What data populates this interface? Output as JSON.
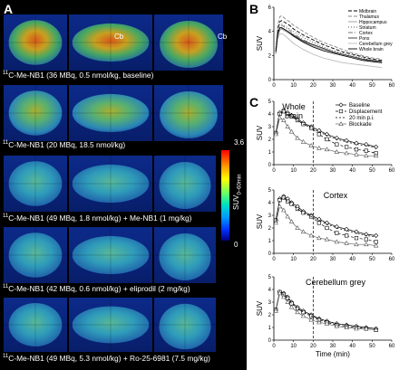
{
  "panel_a": {
    "label": "A",
    "cerebellum_label": "Cb",
    "colorbar": {
      "max": "3.6",
      "min": "0",
      "label": "SUV",
      "label_sub": "0–60min"
    },
    "rows": [
      {
        "sup": "11",
        "text": "C-Me-NB1 (36 MBq, 0.5 nmol/kg, baseline)"
      },
      {
        "sup": "11",
        "text": "C-Me-NB1 (20 MBq, 18.5 nmol/kg)"
      },
      {
        "sup": "11",
        "text": "C-Me-NB1 (49 MBq, 1.8 nmol/kg) + Me-NB1 (1 mg/kg)"
      },
      {
        "sup": "11",
        "text": "C-Me-NB1 (42 MBq, 0.6 nmol/kg) + eliprodil (2 mg/kg)"
      },
      {
        "sup": "11",
        "text": "C-Me-NB1 (49 MBq, 5.3 nmol/kg) + Ro-25-6981 (7.5 mg/kg)"
      }
    ]
  },
  "chart_data": [
    {
      "panel": "B",
      "type": "line",
      "ylabel": "SUV",
      "xlim": [
        0,
        60
      ],
      "ylim": [
        0,
        6
      ],
      "xticks": [
        0,
        10,
        20,
        30,
        40,
        50,
        60
      ],
      "yticks": [
        0,
        2,
        4,
        6
      ],
      "x": [
        1,
        2,
        3,
        4,
        6,
        8,
        10,
        15,
        20,
        25,
        30,
        35,
        40,
        45,
        50,
        55
      ],
      "series": [
        {
          "name": "Midbrain",
          "color": "#000000",
          "dash": "4,2",
          "values": [
            2.5,
            4.2,
            4.8,
            4.9,
            4.7,
            4.5,
            4.2,
            3.7,
            3.3,
            2.9,
            2.6,
            2.3,
            2.1,
            1.9,
            1.7,
            1.6
          ]
        },
        {
          "name": "Thalamus",
          "color": "#888888",
          "dash": "4,2",
          "values": [
            2.4,
            4.5,
            5.2,
            5.3,
            5.0,
            4.8,
            4.5,
            4.0,
            3.5,
            3.1,
            2.8,
            2.5,
            2.2,
            2.0,
            1.8,
            1.7
          ]
        },
        {
          "name": "Hippocampus",
          "color": "#999999",
          "dash": "",
          "values": [
            2.2,
            3.6,
            4.1,
            4.2,
            4.0,
            3.8,
            3.6,
            3.2,
            2.8,
            2.5,
            2.3,
            2.1,
            1.9,
            1.7,
            1.6,
            1.5
          ]
        },
        {
          "name": "Striatum",
          "color": "#555555",
          "dash": "1,2",
          "values": [
            2.3,
            4.0,
            4.6,
            4.6,
            4.4,
            4.2,
            4.0,
            3.5,
            3.1,
            2.7,
            2.4,
            2.2,
            2.0,
            1.8,
            1.6,
            1.5
          ]
        },
        {
          "name": "Cortex",
          "color": "#777777",
          "dash": "5,2,1,2",
          "values": [
            2.3,
            3.9,
            4.4,
            4.5,
            4.3,
            4.1,
            3.8,
            3.3,
            2.9,
            2.6,
            2.3,
            2.1,
            1.9,
            1.7,
            1.5,
            1.4
          ]
        },
        {
          "name": "Pons",
          "color": "#333333",
          "dash": "",
          "values": [
            2.2,
            3.8,
            4.3,
            4.3,
            4.1,
            3.9,
            3.7,
            3.2,
            2.9,
            2.6,
            2.3,
            2.1,
            1.9,
            1.7,
            1.6,
            1.5
          ]
        },
        {
          "name": "Cerebellum grey",
          "color": "#bbbbbb",
          "dash": "",
          "values": [
            2.1,
            3.4,
            3.8,
            3.8,
            3.6,
            3.3,
            3.0,
            2.5,
            2.1,
            1.8,
            1.6,
            1.4,
            1.3,
            1.2,
            1.1,
            1.0
          ]
        },
        {
          "name": "Whole brain",
          "color": "#000000",
          "dash": "",
          "values": [
            2.3,
            3.8,
            4.3,
            4.3,
            4.1,
            3.9,
            3.6,
            3.1,
            2.7,
            2.4,
            2.2,
            2.0,
            1.8,
            1.6,
            1.5,
            1.4
          ]
        }
      ]
    },
    {
      "panel": "C",
      "type": "line",
      "title": "Whole brain",
      "ylabel": "SUV",
      "xlim": [
        0,
        60
      ],
      "ylim": [
        0,
        5
      ],
      "xticks": [
        0,
        10,
        20,
        30,
        40,
        50,
        60
      ],
      "yticks": [
        0,
        1,
        2,
        3,
        4,
        5
      ],
      "vline": 20,
      "x": [
        1,
        3,
        5,
        7,
        9,
        12,
        15,
        19,
        23,
        27,
        32,
        37,
        42,
        47,
        52
      ],
      "series": [
        {
          "name": "Baseline",
          "marker": "diamond",
          "dash": "",
          "values": [
            2.5,
            4.1,
            4.3,
            4.1,
            3.9,
            3.6,
            3.3,
            3.0,
            2.7,
            2.4,
            2.1,
            1.9,
            1.7,
            1.6,
            1.4
          ]
        },
        {
          "name": "Displacement",
          "marker": "square",
          "dash": "3,2",
          "values": [
            2.5,
            4.0,
            4.2,
            4.0,
            3.8,
            3.5,
            3.2,
            2.9,
            2.4,
            2.0,
            1.6,
            1.4,
            1.2,
            1.1,
            0.9
          ]
        },
        {
          "name": "20 min p.i.",
          "marker": "none",
          "dash": "2,2",
          "values": [
            2.5,
            4.0,
            4.2,
            4.0,
            3.8,
            3.5,
            3.2,
            2.9,
            2.6,
            2.3,
            2.0,
            1.8,
            1.6,
            1.5,
            1.3
          ]
        },
        {
          "name": "Blockade",
          "marker": "triangle",
          "dash": "",
          "values": [
            2.4,
            3.7,
            3.5,
            3.0,
            2.6,
            2.1,
            1.8,
            1.5,
            1.3,
            1.2,
            1.0,
            0.9,
            0.8,
            0.7,
            0.7
          ]
        }
      ]
    },
    {
      "panel": "C",
      "type": "line",
      "title": "Cortex",
      "ylabel": "SUV",
      "xlim": [
        0,
        60
      ],
      "ylim": [
        0,
        5
      ],
      "xticks": [
        0,
        10,
        20,
        30,
        40,
        50,
        60
      ],
      "yticks": [
        0,
        1,
        2,
        3,
        4,
        5
      ],
      "vline": 20,
      "x": [
        1,
        3,
        5,
        7,
        9,
        12,
        15,
        19,
        23,
        27,
        32,
        37,
        42,
        47,
        52
      ],
      "series": [
        {
          "name": "Baseline",
          "marker": "diamond",
          "dash": "",
          "values": [
            2.6,
            4.3,
            4.5,
            4.3,
            4.0,
            3.7,
            3.3,
            3.0,
            2.7,
            2.4,
            2.1,
            1.9,
            1.7,
            1.5,
            1.4
          ]
        },
        {
          "name": "Displacement",
          "marker": "square",
          "dash": "3,2",
          "values": [
            2.6,
            4.2,
            4.4,
            4.1,
            3.9,
            3.5,
            3.2,
            2.9,
            2.4,
            2.0,
            1.6,
            1.4,
            1.2,
            1.1,
            0.9
          ]
        },
        {
          "name": "20 min p.i.",
          "marker": "none",
          "dash": "2,2",
          "values": [
            2.6,
            4.2,
            4.4,
            4.1,
            3.9,
            3.5,
            3.2,
            2.9,
            2.6,
            2.3,
            2.0,
            1.8,
            1.6,
            1.4,
            1.3
          ]
        },
        {
          "name": "Blockade",
          "marker": "triangle",
          "dash": "",
          "values": [
            2.4,
            3.7,
            3.4,
            2.9,
            2.5,
            2.0,
            1.7,
            1.4,
            1.2,
            1.1,
            0.9,
            0.8,
            0.7,
            0.7,
            0.6
          ]
        }
      ]
    },
    {
      "panel": "C",
      "type": "line",
      "title": "Cerebellum grey",
      "ylabel": "SUV",
      "xlabel": "Time (min)",
      "xlim": [
        0,
        60
      ],
      "ylim": [
        0,
        5
      ],
      "xticks": [
        0,
        10,
        20,
        30,
        40,
        50,
        60
      ],
      "yticks": [
        0,
        1,
        2,
        3,
        4,
        5
      ],
      "vline": 20,
      "x": [
        1,
        3,
        5,
        7,
        9,
        12,
        15,
        19,
        23,
        27,
        32,
        37,
        42,
        47,
        52
      ],
      "series": [
        {
          "name": "Baseline",
          "marker": "diamond",
          "dash": "",
          "values": [
            2.4,
            3.8,
            3.7,
            3.4,
            3.0,
            2.6,
            2.3,
            2.0,
            1.7,
            1.5,
            1.3,
            1.2,
            1.1,
            1.0,
            0.9
          ]
        },
        {
          "name": "Displacement",
          "marker": "square",
          "dash": "3,2",
          "values": [
            2.4,
            3.8,
            3.6,
            3.3,
            2.9,
            2.5,
            2.2,
            1.9,
            1.6,
            1.4,
            1.2,
            1.1,
            1.0,
            0.9,
            0.8
          ]
        },
        {
          "name": "20 min p.i.",
          "marker": "none",
          "dash": "2,2",
          "values": [
            2.4,
            3.8,
            3.6,
            3.3,
            2.9,
            2.5,
            2.2,
            1.9,
            1.7,
            1.5,
            1.3,
            1.2,
            1.1,
            1.0,
            0.9
          ]
        },
        {
          "name": "Blockade",
          "marker": "triangle",
          "dash": "",
          "values": [
            2.3,
            3.7,
            3.4,
            3.0,
            2.6,
            2.2,
            1.9,
            1.6,
            1.4,
            1.3,
            1.1,
            1.0,
            0.9,
            0.9,
            0.8
          ]
        }
      ]
    }
  ],
  "panel_labels": {
    "b": "B",
    "c": "C"
  }
}
